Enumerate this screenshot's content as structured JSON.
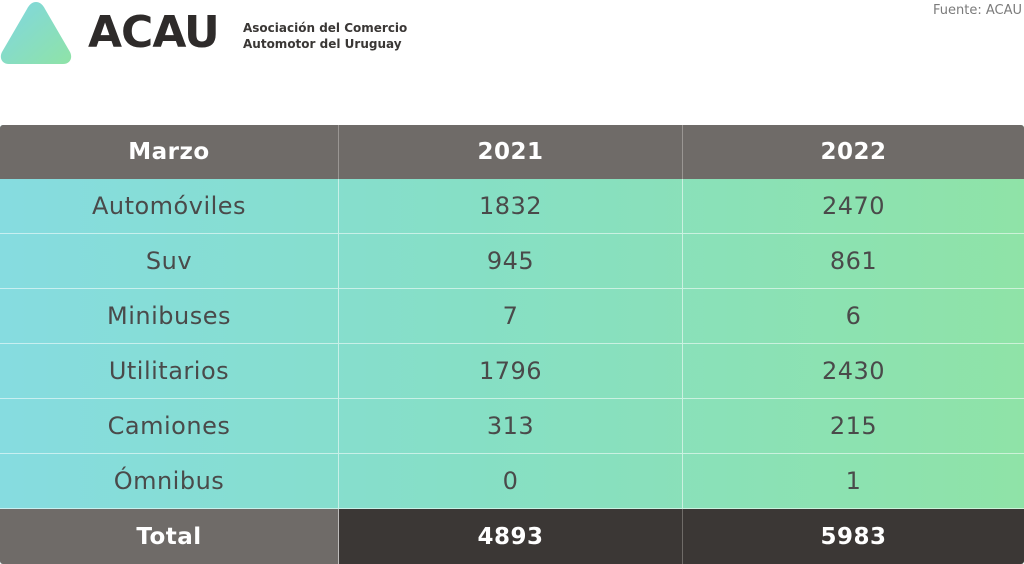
{
  "header": {
    "brand": "ACAU",
    "org_line1": "Asociación del Comercio",
    "org_line2": "Automotor del Uruguay",
    "source": "Fuente: ACAU"
  },
  "colors": {
    "logo_gradient": [
      "#7fd6e2",
      "#8fe3a7"
    ],
    "header_bg": "#6f6b68",
    "total_bg": "#3b3735"
  },
  "chart_data": {
    "type": "table",
    "columns": [
      "Marzo",
      "2021",
      "2022"
    ],
    "rows": [
      {
        "category": "Automóviles",
        "values": [
          "1832",
          "2470"
        ]
      },
      {
        "category": "Suv",
        "values": [
          "945",
          "861"
        ]
      },
      {
        "category": "Minibuses",
        "values": [
          "7",
          "6"
        ]
      },
      {
        "category": "Utilitarios",
        "values": [
          "1796",
          "2430"
        ]
      },
      {
        "category": "Camiones",
        "values": [
          "313",
          "215"
        ]
      },
      {
        "category": "Ómnibus",
        "values": [
          "0",
          "1"
        ]
      }
    ],
    "total": {
      "label": "Total",
      "values": [
        "4893",
        "5983"
      ]
    }
  }
}
